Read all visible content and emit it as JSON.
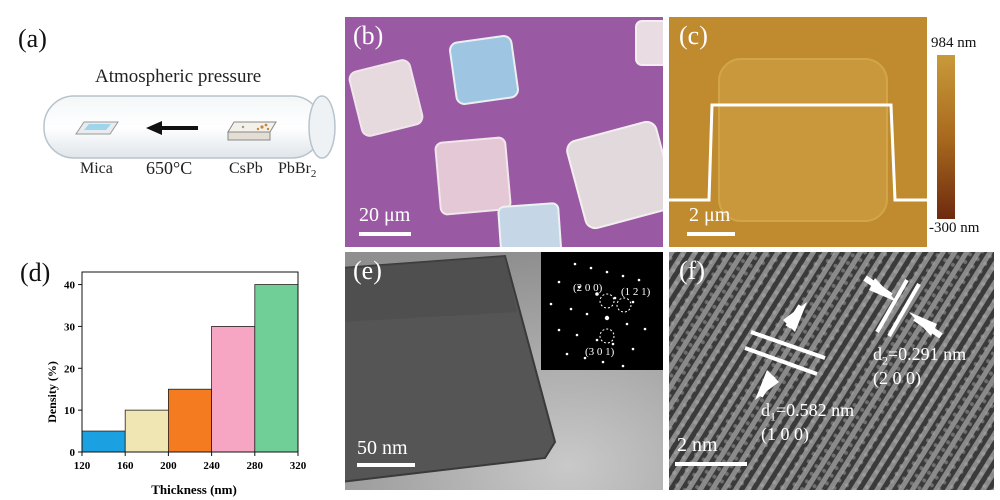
{
  "panel_labels": {
    "a": "(a)",
    "b": "(b)",
    "c": "(c)",
    "d": "(d)",
    "e": "(e)",
    "f": "(f)"
  },
  "panel_a": {
    "title": "Atmospheric pressure",
    "mica": "Mica",
    "temperature": "650°C",
    "cspb": "CsPb",
    "pbbr2_base": "PbBr",
    "pbbr2_sub": "2"
  },
  "panel_b": {
    "scale": "20 μm"
  },
  "panel_c": {
    "scale": "2 μm",
    "colorbar_max": "984 nm",
    "colorbar_min": "-300 nm"
  },
  "panel_e": {
    "scale": "50 nm",
    "saed": {
      "spot1": "(2 0 0)",
      "spot2": "(1 2 1)",
      "spot3": "(3 0 1)"
    }
  },
  "panel_f": {
    "scale": "2 nm",
    "d1_label": "d",
    "d1_sub": "1",
    "d1_value": "=0.582 nm",
    "d1_plane": "(1 0 0)",
    "d2_label": "d",
    "d2_sub": "2",
    "d2_value": "=0.291 nm",
    "d2_plane": "(2 0 0)"
  },
  "colors": {
    "bar1": "#1ba1e2",
    "bar2": "#efe6b4",
    "bar3": "#f47b20",
    "bar4": "#f6a6c2",
    "bar5": "#6fcf97",
    "substrate": "#9a5aa3"
  },
  "chart_data": {
    "type": "bar",
    "xlabel": "Thickness (nm)",
    "ylabel": "Density (%)",
    "x_ticks": [
      "120",
      "160",
      "200",
      "240",
      "280",
      "320"
    ],
    "y_ticks": [
      "0",
      "10",
      "20",
      "30",
      "40"
    ],
    "bins": [
      [
        120,
        160
      ],
      [
        160,
        200
      ],
      [
        200,
        240
      ],
      [
        240,
        280
      ],
      [
        280,
        320
      ]
    ],
    "values": [
      5,
      10,
      15,
      30,
      40
    ],
    "xlim": [
      120,
      320
    ],
    "ylim": [
      0,
      43
    ],
    "grid": false
  }
}
